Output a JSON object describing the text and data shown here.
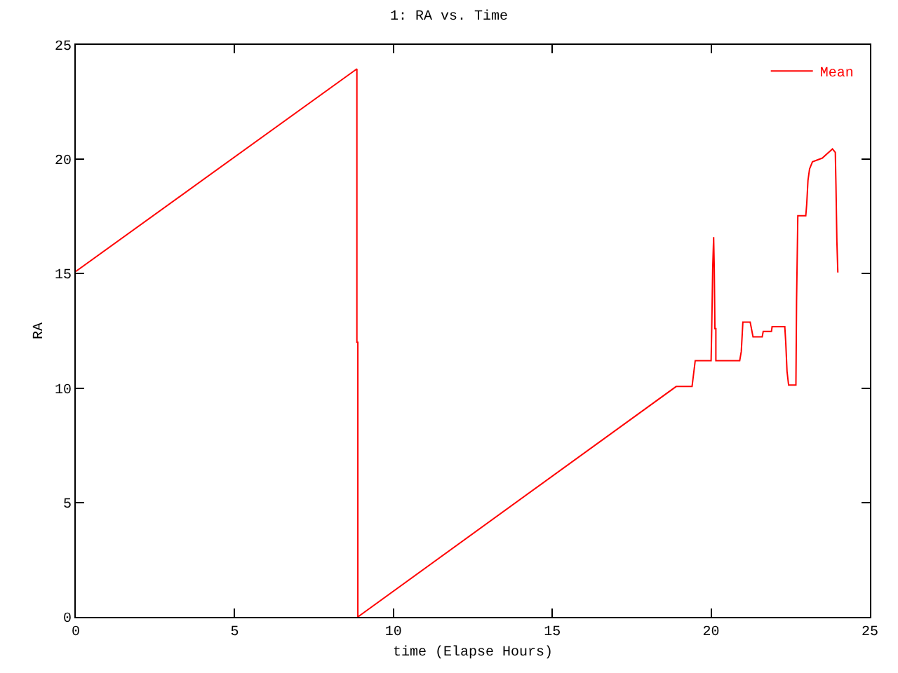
{
  "chart_data": {
    "type": "line",
    "title": "1: RA vs. Time",
    "xlabel": "time (Elapse Hours)",
    "ylabel": "RA",
    "xlim": [
      0,
      25
    ],
    "ylim": [
      0,
      25
    ],
    "xticks": [
      0,
      5,
      10,
      15,
      20,
      25
    ],
    "yticks": [
      0,
      5,
      10,
      15,
      20,
      25
    ],
    "legend": "top right",
    "marker": "none",
    "line_style": "solid",
    "series": [
      {
        "name": "Mean",
        "color": "#ff0000",
        "x": [
          0,
          8.85,
          8.85,
          8.88,
          8.88,
          18.9,
          19.4,
          19.5,
          19.5,
          20.0,
          20.02,
          20.05,
          20.08,
          20.1,
          20.12,
          20.15,
          20.15,
          20.9,
          20.95,
          21.0,
          21.23,
          21.32,
          21.61,
          21.64,
          21.9,
          21.92,
          22.32,
          22.35,
          22.39,
          22.44,
          22.67,
          22.69,
          22.73,
          22.98,
          23.01,
          23.05,
          23.1,
          23.19,
          23.5,
          23.82,
          23.91,
          23.93,
          23.96,
          23.99
        ],
        "values": [
          15.1,
          23.95,
          12.0,
          12.0,
          0,
          10.07,
          10.07,
          11.2,
          11.2,
          11.2,
          12.6,
          15.2,
          16.6,
          15.2,
          12.6,
          12.6,
          11.2,
          11.2,
          11.6,
          12.88,
          12.88,
          12.24,
          12.24,
          12.48,
          12.48,
          12.68,
          12.68,
          12.0,
          10.73,
          10.13,
          10.13,
          13.77,
          17.53,
          17.53,
          18.04,
          19.08,
          19.58,
          19.89,
          20.05,
          20.45,
          20.3,
          18.9,
          16.4,
          15.05
        ]
      }
    ]
  }
}
